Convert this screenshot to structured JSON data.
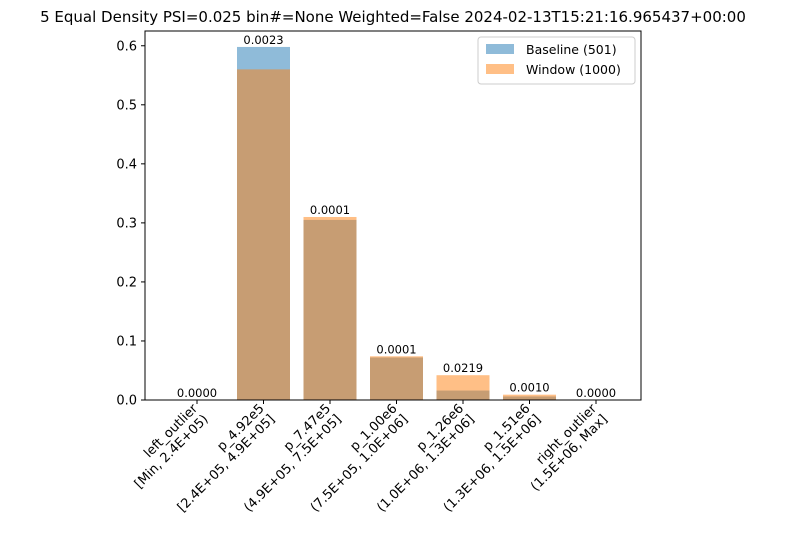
{
  "chart_data": {
    "type": "bar",
    "title": "5 Equal Density PSI=0.025 bin#=None Weighted=False 2024-02-13T15:21:16.965437+00:00",
    "xlabel": "",
    "ylabel": "",
    "ylim": [
      0,
      0.625
    ],
    "yticks": [
      "0.0",
      "0.1",
      "0.2",
      "0.3",
      "0.4",
      "0.5",
      "0.6"
    ],
    "categories": [
      [
        "left_outlier",
        "[Min, 2.4E+05)"
      ],
      [
        "p_4.92e5",
        "[2.4E+05, 4.9E+05]"
      ],
      [
        "p_7.47e5",
        "(4.9E+05, 7.5E+05]"
      ],
      [
        "p_1.00e6",
        "(7.5E+05, 1.0E+06]"
      ],
      [
        "p_1.26e6",
        "(1.0E+06, 1.3E+06]"
      ],
      [
        "p_1.51e6",
        "(1.3E+06, 1.5E+06]"
      ],
      [
        "right_outlier",
        "(1.5E+06, Max]"
      ]
    ],
    "series": [
      {
        "name": "Baseline (501)",
        "color": "#1f77b4",
        "values": [
          0.0,
          0.598,
          0.305,
          0.072,
          0.016,
          0.006,
          0.0
        ]
      },
      {
        "name": "Window (1000)",
        "color": "#ff7f0e",
        "values": [
          0.0,
          0.56,
          0.31,
          0.074,
          0.042,
          0.009,
          0.0
        ]
      }
    ],
    "bar_labels": [
      "0.0000",
      "0.0023",
      "0.0001",
      "0.0001",
      "0.0219",
      "0.0010",
      "0.0000"
    ],
    "legend": "top-right",
    "grid": false
  }
}
